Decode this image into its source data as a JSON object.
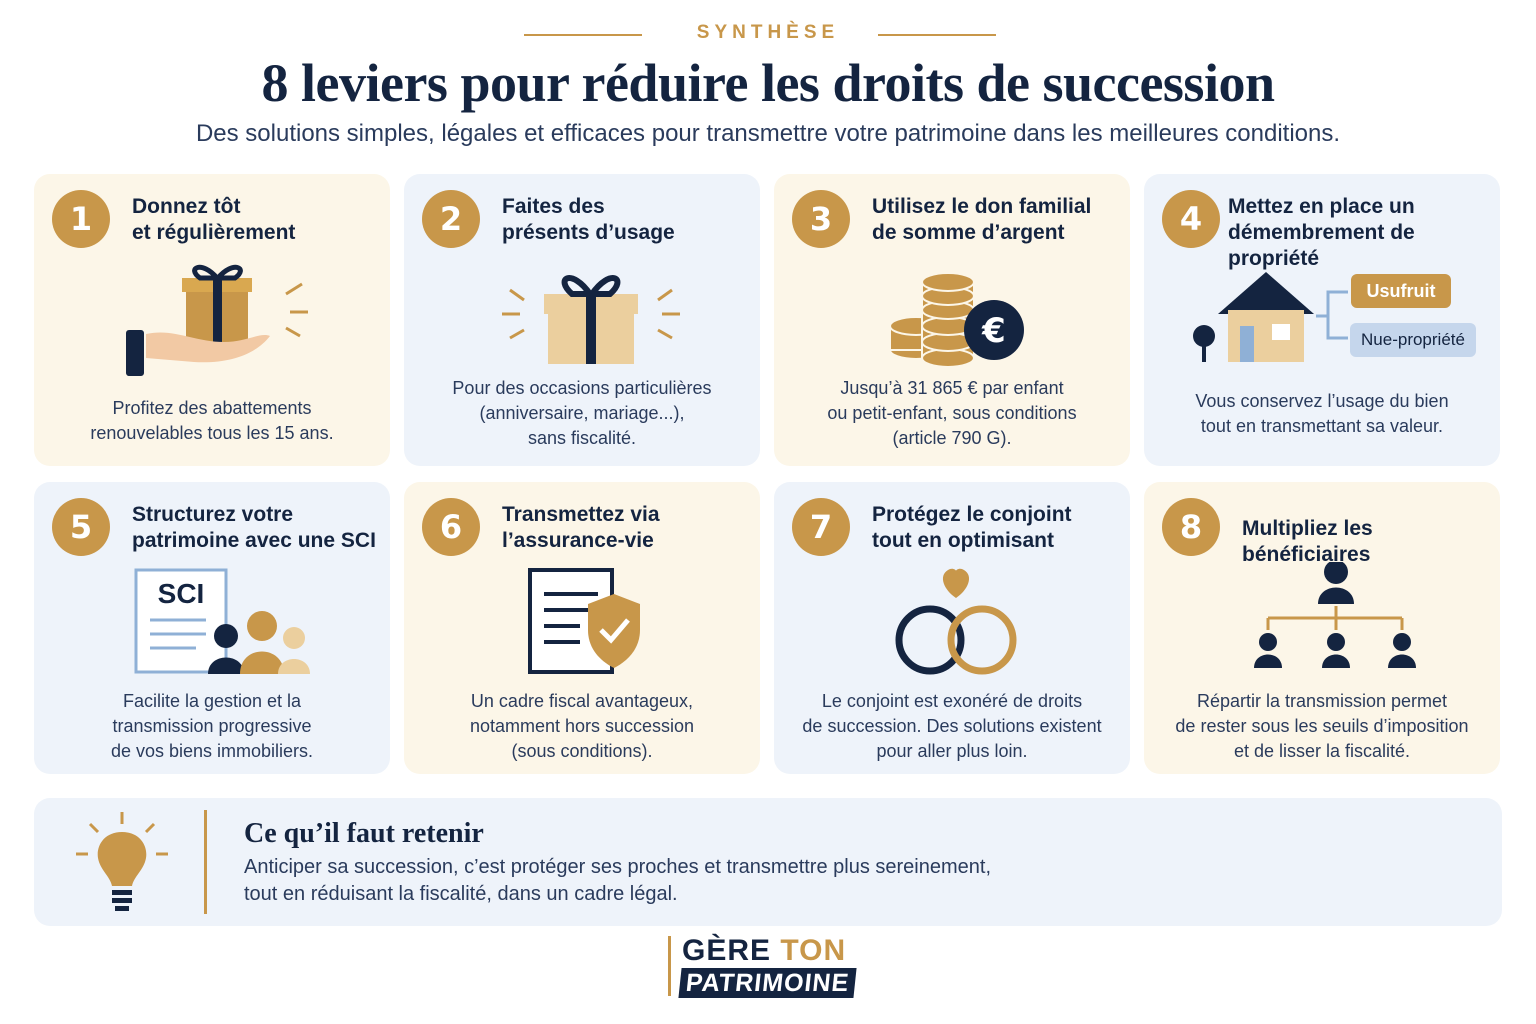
{
  "header": {
    "eyebrow": "SYNTHÈSE",
    "title": "8 leviers pour réduire les droits de succession",
    "subtitle": "Des solutions simples, légales et efficaces pour transmettre votre patrimoine dans les meilleures conditions."
  },
  "cards": [
    {
      "number": "1",
      "title_line1": "Donnez tôt",
      "title_line2": "et régulièrement",
      "desc_line1": "Profitez des abattements",
      "desc_line2": "renouvelables tous les 15 ans.",
      "desc_line3": "",
      "icon": "gift-hand-icon"
    },
    {
      "number": "2",
      "title_line1": "Faites des",
      "title_line2": "présents d’usage",
      "desc_line1": "Pour des occasions particulières",
      "desc_line2": "(anniversaire, mariage...),",
      "desc_line3": "sans fiscalité.",
      "icon": "gift-icon"
    },
    {
      "number": "3",
      "title_line1": "Utilisez le don familial",
      "title_line2": "de somme d’argent",
      "desc_line1": "Jusqu’à 31 865 € par enfant",
      "desc_line2": "ou petit-enfant, sous conditions",
      "desc_line3": "(article 790 G).",
      "icon": "coins-euro-icon"
    },
    {
      "number": "4",
      "title_line1": "Mettez en place un",
      "title_line2": "démembrement de propriété",
      "desc_line1": "Vous conservez l’usage du bien",
      "desc_line2": "tout en transmettant sa valeur.",
      "desc_line3": "",
      "icon": "house-split-icon",
      "tag_usufruit": "Usufruit",
      "tag_nue": "Nue-propriété"
    },
    {
      "number": "5",
      "title_line1": "Structurez votre",
      "title_line2": "patrimoine avec une SCI",
      "desc_line1": "Facilite la gestion et la",
      "desc_line2": "transmission progressive",
      "desc_line3": "de vos biens immobiliers.",
      "icon": "sci-document-family-icon",
      "doc_label": "SCI"
    },
    {
      "number": "6",
      "title_line1": "Transmettez via",
      "title_line2": "l’assurance-vie",
      "desc_line1": "Un cadre fiscal avantageux,",
      "desc_line2": "notamment hors succession",
      "desc_line3": "(sous conditions).",
      "icon": "document-shield-icon"
    },
    {
      "number": "7",
      "title_line1": "Protégez le conjoint",
      "title_line2": "tout en optimisant",
      "desc_line1": "Le conjoint est exonéré de droits",
      "desc_line2": "de succession. Des solutions existent",
      "desc_line3": "pour aller plus loin.",
      "icon": "rings-heart-icon"
    },
    {
      "number": "8",
      "title_line1": "Multipliez les bénéficiaires",
      "title_line2": "",
      "desc_line1": "Répartir la transmission permet",
      "desc_line2": "de rester sous les seuils d’imposition",
      "desc_line3": "et de lisser la fiscalité.",
      "icon": "org-people-icon"
    }
  ],
  "takeaway": {
    "title": "Ce qu’il faut retenir",
    "text_line1": "Anticiper sa succession, c’est protéger ses proches et transmettre plus sereinement,",
    "text_line2": "tout en réduisant la fiscalité, dans un cadre légal.",
    "icon": "lightbulb-icon"
  },
  "brand": {
    "word1": "GÈRE",
    "word2": "TON",
    "word3": "PATRIMOINE"
  },
  "colors": {
    "gold": "#c8974a",
    "navy": "#142440",
    "cream": "#fcf6e8",
    "lightblue": "#eef3fa"
  }
}
